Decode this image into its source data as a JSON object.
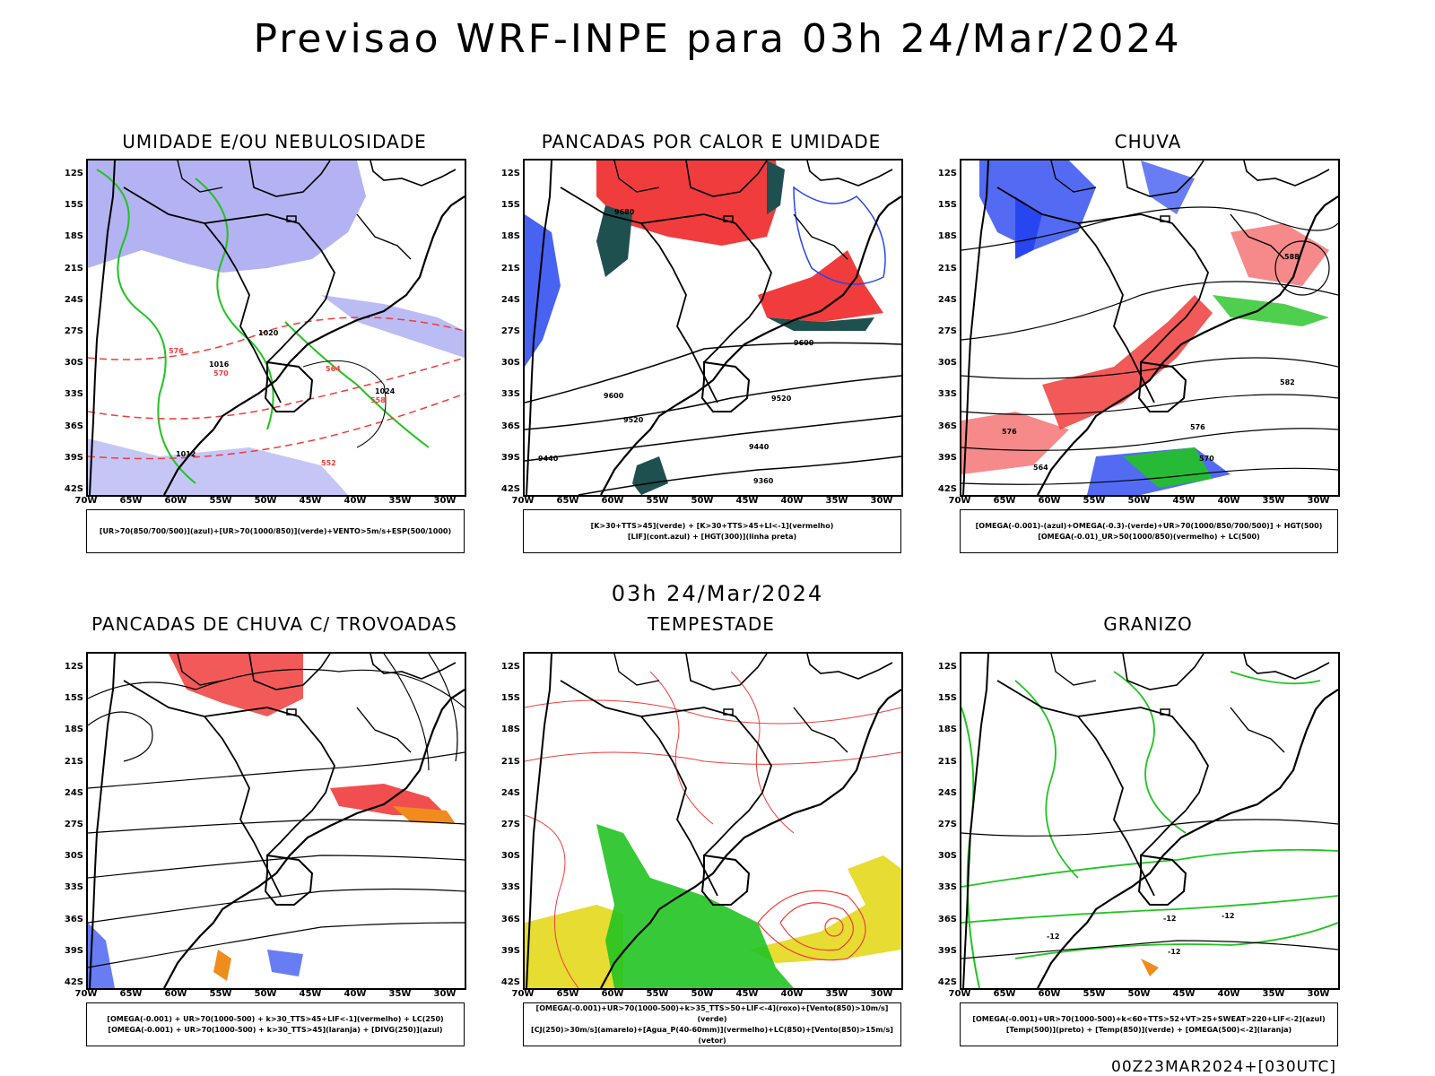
{
  "title": "Previsao WRF-INPE  para 03h 24/Mar/2024",
  "middle_title": "03h 24/Mar/2024",
  "footer": "00Z23MAR2024+[030UTC]",
  "lat_ticks": [
    "12S",
    "15S",
    "18S",
    "21S",
    "24S",
    "27S",
    "30S",
    "33S",
    "36S",
    "39S",
    "42S"
  ],
  "lon_ticks": [
    "70W",
    "65W",
    "60W",
    "55W",
    "50W",
    "45W",
    "40W",
    "35W",
    "30W"
  ],
  "colors": {
    "green": "#22c322",
    "red": "#f03c3c",
    "blue": "#2846f0",
    "lavender": "#a0a0f0",
    "darkteal": "#1e5050",
    "yellow": "#e6dc32",
    "orange": "#f08c1e"
  },
  "panels": [
    {
      "title": "UMIDADE E/OU NEBULOSIDADE",
      "legend": [
        "[UR>70(850/700/500)](azul)+[UR>70(1000/850)](verde)+VENTO>5m/s+ESP(500/1000)"
      ],
      "labels": [
        "1012",
        "1016",
        "1020",
        "1024",
        "576",
        "570",
        "564",
        "558",
        "552"
      ]
    },
    {
      "title": "PANCADAS POR CALOR E UMIDADE",
      "legend": [
        "[K>30+TTS>45](verde) + [K>30+TTS>45+LI<-1](vermelho)",
        "[LIF](cont.azul) + [HGT(300)](linha preta)"
      ],
      "labels": [
        "9600",
        "9520",
        "9440",
        "9360",
        "9680"
      ]
    },
    {
      "title": "CHUVA",
      "legend": [
        "[OMEGA(-0.001)-(azul)+OMEGA(-0.3)-(verde)+UR>70(1000/850/700/500)] + HGT(500)",
        "[OMEGA(-0.01)_UR>50(1000/850)(vermelho) + LC(500)"
      ],
      "labels": [
        "588",
        "582",
        "576",
        "570",
        "564"
      ]
    },
    {
      "title": "PANCADAS DE CHUVA C/ TROVOADAS",
      "legend": [
        "[OMEGA(-0.001) + UR>70(1000-500) + k>30_TTS>45+LIF<-1](vermelho) + LC(250)",
        "[OMEGA(-0.001) + UR>70(1000-500) + k>30_TTS>45](laranja) + [DIVG(250)](azul)"
      ],
      "labels": []
    },
    {
      "title": "TEMPESTADE",
      "legend": [
        "[OMEGA(-0.001)+UR>70(1000-500)+k>35_TTS>50+LIF<-4](roxo)+[Vento(850)>10m/s](verde)",
        "[CJ(250)>30m/s](amarelo)+[Agua_P(40-60mm)](vermelho)+LC(850)+[Vento(850)>15m/s](vetor)"
      ],
      "labels": []
    },
    {
      "title": "GRANIZO",
      "legend": [
        "[OMEGA(-0.001)+UR>70(1000-500)+k<60+TTS>52+VT>25+SWEAT>220+LIF<-2](azul)",
        "[Temp(500)](preto) + [Temp(850)](verde) + [OMEGA(500)<-2](laranja)"
      ],
      "labels": [
        "-12",
        "-12",
        "-12",
        "-12"
      ]
    }
  ]
}
